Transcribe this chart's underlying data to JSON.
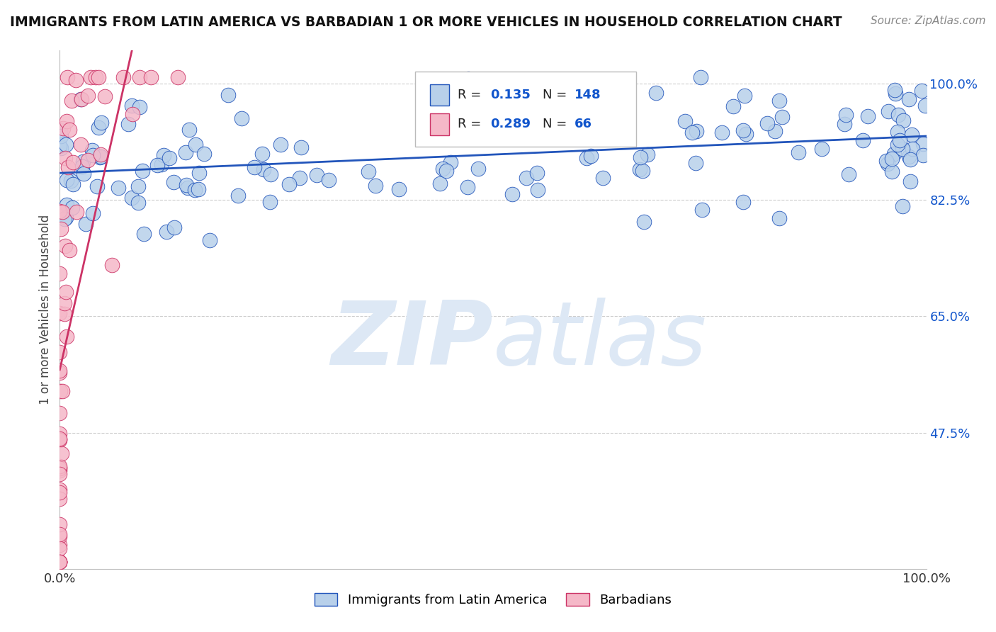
{
  "title": "IMMIGRANTS FROM LATIN AMERICA VS BARBADIAN 1 OR MORE VEHICLES IN HOUSEHOLD CORRELATION CHART",
  "source": "Source: ZipAtlas.com",
  "ylabel": "1 or more Vehicles in Household",
  "legend_label_1": "Immigrants from Latin America",
  "legend_label_2": "Barbadians",
  "R1": 0.135,
  "N1": 148,
  "R2": 0.289,
  "N2": 66,
  "xlim": [
    0.0,
    1.0
  ],
  "ylim": [
    0.27,
    1.05
  ],
  "yticks": [
    0.475,
    0.65,
    0.825,
    1.0
  ],
  "ytick_labels": [
    "47.5%",
    "65.0%",
    "82.5%",
    "100.0%"
  ],
  "color_blue": "#b8d0ea",
  "color_pink": "#f5b8c8",
  "line_color_blue": "#2255bb",
  "line_color_pink": "#cc3366",
  "title_color": "#111111",
  "legend_color": "#1155cc",
  "watermark_color": "#dde8f5",
  "background_color": "#ffffff",
  "blue_seed": 12,
  "pink_seed": 77
}
